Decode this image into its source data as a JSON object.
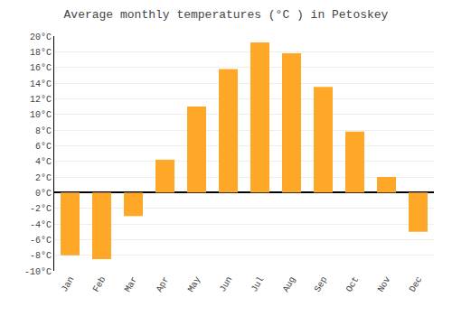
{
  "chart_data": {
    "type": "bar",
    "title": "Average monthly temperatures (°C ) in Petoskey",
    "categories": [
      "Jan",
      "Feb",
      "Mar",
      "Apr",
      "May",
      "Jun",
      "Jul",
      "Aug",
      "Sep",
      "Oct",
      "Nov",
      "Dec"
    ],
    "values": [
      -8,
      -8.5,
      -3,
      4.2,
      11,
      15.8,
      19.2,
      17.8,
      13.5,
      7.8,
      2,
      -5
    ],
    "color": "#FFA726",
    "ylim": [
      -10,
      20
    ],
    "yticks": [
      {
        "value": -10,
        "label": "-10°C"
      },
      {
        "value": -8,
        "label": "-8°C"
      },
      {
        "value": -6,
        "label": "-6°C"
      },
      {
        "value": -4,
        "label": "-4°C"
      },
      {
        "value": -2,
        "label": "-2°C"
      },
      {
        "value": 0,
        "label": "0°C"
      },
      {
        "value": 2,
        "label": "2°C"
      },
      {
        "value": 4,
        "label": "4°C"
      },
      {
        "value": 6,
        "label": "6°C"
      },
      {
        "value": 8,
        "label": "8°C"
      },
      {
        "value": 10,
        "label": "10°C"
      },
      {
        "value": 12,
        "label": "12°C"
      },
      {
        "value": 14,
        "label": "14°C"
      },
      {
        "value": 16,
        "label": "16°C"
      },
      {
        "value": 18,
        "label": "18°C"
      },
      {
        "value": 20,
        "label": "20°C"
      }
    ],
    "grid": true
  }
}
